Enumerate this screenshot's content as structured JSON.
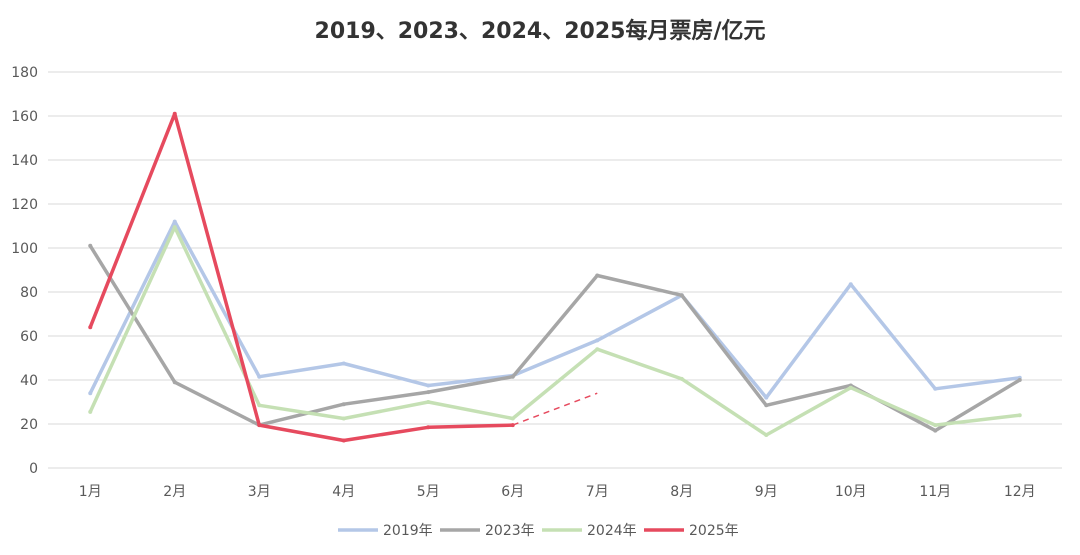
{
  "chart_data": {
    "type": "line",
    "title": "2019、2023、2024、2025每月票房/亿元",
    "xlabel": "",
    "ylabel": "",
    "categories": [
      "1月",
      "2月",
      "3月",
      "4月",
      "5月",
      "6月",
      "7月",
      "8月",
      "9月",
      "10月",
      "11月",
      "12月"
    ],
    "ylim": [
      0,
      180
    ],
    "yticks": [
      0,
      20,
      40,
      60,
      80,
      100,
      120,
      140,
      160,
      180
    ],
    "grid": true,
    "legend_position": "bottom",
    "series": [
      {
        "name": "2019年",
        "color": "#b4c7e7",
        "values": [
          34,
          112,
          41.5,
          47.5,
          37.5,
          42,
          58,
          78.5,
          32,
          83.5,
          36,
          41
        ]
      },
      {
        "name": "2023年",
        "color": "#a6a6a6",
        "values": [
          101,
          39,
          19.5,
          29,
          34.5,
          41.5,
          87.5,
          78.5,
          28.5,
          37.5,
          17,
          40
        ]
      },
      {
        "name": "2024年",
        "color": "#c5e0b4",
        "values": [
          25.5,
          109.5,
          28.5,
          22.5,
          30,
          22.5,
          54,
          40.5,
          15,
          36.5,
          19.5,
          24
        ]
      },
      {
        "name": "2025年",
        "color": "#e64a5e",
        "values": [
          64,
          161,
          19.5,
          12.5,
          18.5,
          19.5,
          null,
          null,
          null,
          null,
          null,
          null
        ]
      }
    ],
    "projection": {
      "series": "2025年",
      "from_category": "6月",
      "to_category": "7月",
      "values": [
        19.5,
        34
      ]
    }
  }
}
